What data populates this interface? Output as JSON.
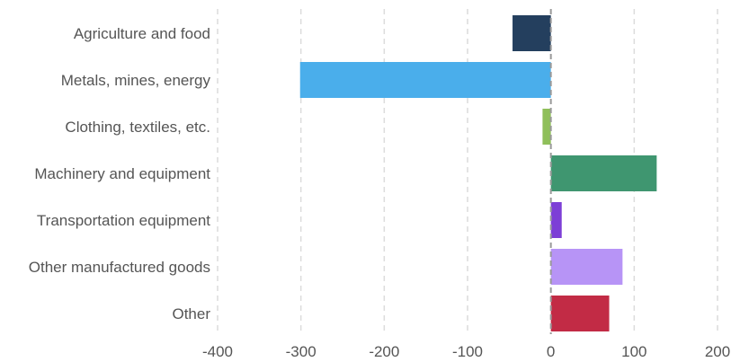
{
  "chart_data": {
    "type": "bar",
    "orientation": "horizontal",
    "categories": [
      "Agriculture and food",
      "Metals, mines, energy",
      "Clothing, textiles, etc.",
      "Machinery and equipment",
      "Transportation equipment",
      "Other manufactured goods",
      "Other"
    ],
    "values": [
      -46,
      -301,
      -10,
      127,
      13,
      86,
      70
    ],
    "colors": [
      "#243f5e",
      "#4aaeeb",
      "#8fbf5a",
      "#3f9670",
      "#7d3fd6",
      "#b794f6",
      "#c22b45"
    ],
    "xlim": [
      -400,
      200
    ],
    "xticks": [
      -400,
      -300,
      -200,
      -100,
      0,
      100,
      200
    ],
    "xtick_labels": [
      "-400",
      "-300",
      "-200",
      "-100",
      "0",
      "100",
      "200"
    ],
    "grid": "vertical-dashed",
    "title": "",
    "xlabel": "",
    "ylabel": ""
  }
}
